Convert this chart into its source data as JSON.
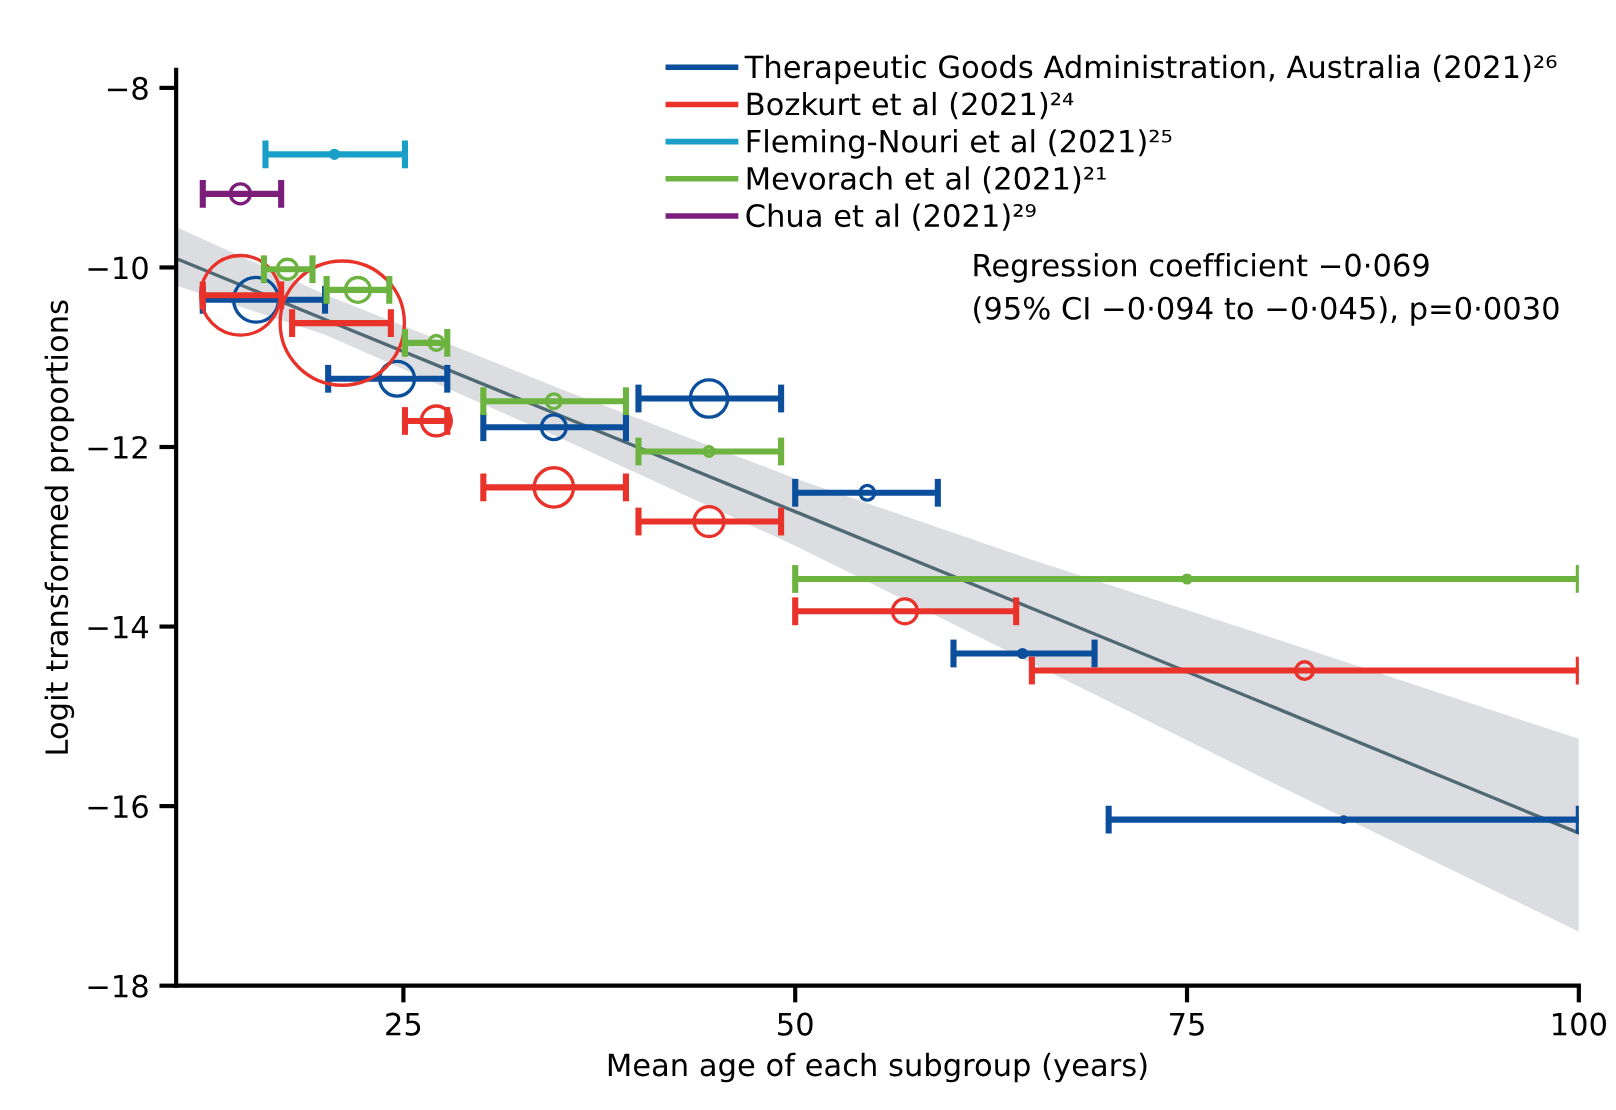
{
  "chart_data": {
    "type": "bubble",
    "xlabel": "Mean age of each subgroup (years)",
    "ylabel": "Logit transformed proportions",
    "xlim": [
      10.5,
      100
    ],
    "ylim": [
      -18,
      -7.8
    ],
    "xticks": [
      25,
      50,
      75,
      100
    ],
    "yticks": [
      -8,
      -10,
      -12,
      -14,
      -16,
      -18
    ],
    "grid": false,
    "legend": "top right",
    "marker": "circle",
    "annotations": [
      "Regression coefficient −0·069",
      "(95% CI −0·094 to −0·045), p=0·0030"
    ],
    "series": [
      {
        "name": "Therapeutic Goods Administration, Australia (2021)²⁶",
        "color": "#0b4f9c",
        "x": [
          15.6,
          24.6,
          34.6,
          44.5,
          54.6,
          64.5,
          85.0
        ],
        "values": [
          -10.36,
          -11.24,
          -11.78,
          -11.46,
          -12.51,
          -14.3,
          -16.15
        ],
        "xerrors": [
          [
            12.2,
            20.0
          ],
          [
            20.2,
            27.8
          ],
          [
            30.1,
            39.2
          ],
          [
            40.0,
            49.1
          ],
          [
            50.0,
            59.1
          ],
          [
            60.1,
            69.1
          ],
          [
            70.0,
            100
          ]
        ],
        "sizes": [
          0.13,
          0.078,
          0.04,
          0.09,
          0.014,
          0.004,
          0.002
        ]
      },
      {
        "name": "Bozkurt et al (2021)²⁴",
        "color": "#e8322a",
        "x": [
          14.6,
          21.1,
          27.1,
          34.6,
          44.5,
          57.0,
          82.5
        ],
        "values": [
          -10.31,
          -10.62,
          -11.71,
          -12.45,
          -12.83,
          -13.83,
          -14.49
        ],
        "xerrors": [
          [
            12.2,
            17.2
          ],
          [
            17.9,
            24.2
          ],
          [
            25.1,
            27.8
          ],
          [
            30.1,
            39.2
          ],
          [
            40.0,
            49.1
          ],
          [
            50.0,
            64.1
          ],
          [
            65.1,
            100
          ]
        ],
        "sizes": [
          0.41,
          1,
          0.058,
          0.1,
          0.058,
          0.04,
          0.02
        ]
      },
      {
        "name": "Fleming-Nouri et al (2021)²⁵",
        "color": "#1aa0c8",
        "x": [
          20.6
        ],
        "values": [
          -8.74
        ],
        "xerrors": [
          [
            16.2,
            25.1
          ]
        ],
        "sizes": [
          0.004
        ]
      },
      {
        "name": "Mevorach et al (2021)²¹",
        "color": "#6cb33f",
        "x": [
          17.6,
          22.1,
          27.1,
          34.6,
          44.5,
          75.0
        ],
        "values": [
          -10.02,
          -10.25,
          -10.84,
          -11.49,
          -12.05,
          -13.47
        ],
        "xerrors": [
          [
            16.1,
            19.2
          ],
          [
            20.1,
            24.1
          ],
          [
            25.1,
            27.8
          ],
          [
            30.1,
            39.2
          ],
          [
            40.0,
            49.1
          ],
          [
            50.0,
            100
          ]
        ],
        "sizes": [
          0.026,
          0.04,
          0.014,
          0.014,
          0.006,
          0.004
        ]
      },
      {
        "name": "Chua et al (2021)²⁹",
        "color": "#7b1e7a",
        "x": [
          14.6
        ],
        "values": [
          -9.18
        ],
        "xerrors": [
          [
            12.2,
            17.2
          ]
        ],
        "sizes": [
          0.026
        ]
      },
      {
        "type": "line",
        "marker": "none",
        "color": "#4f6a75",
        "x": [
          10.5,
          20,
          35,
          50,
          65,
          80,
          100
        ],
        "values": [
          -9.9,
          -10.58,
          -11.65,
          -12.72,
          -13.79,
          -14.86,
          -16.3
        ],
        "lower": [
          -10.2,
          -10.75,
          -11.9,
          -13.1,
          -14.4,
          -15.7,
          -17.4
        ],
        "upper": [
          -9.55,
          -10.3,
          -11.35,
          -12.35,
          -13.25,
          -14.1,
          -15.25
        ]
      }
    ]
  }
}
